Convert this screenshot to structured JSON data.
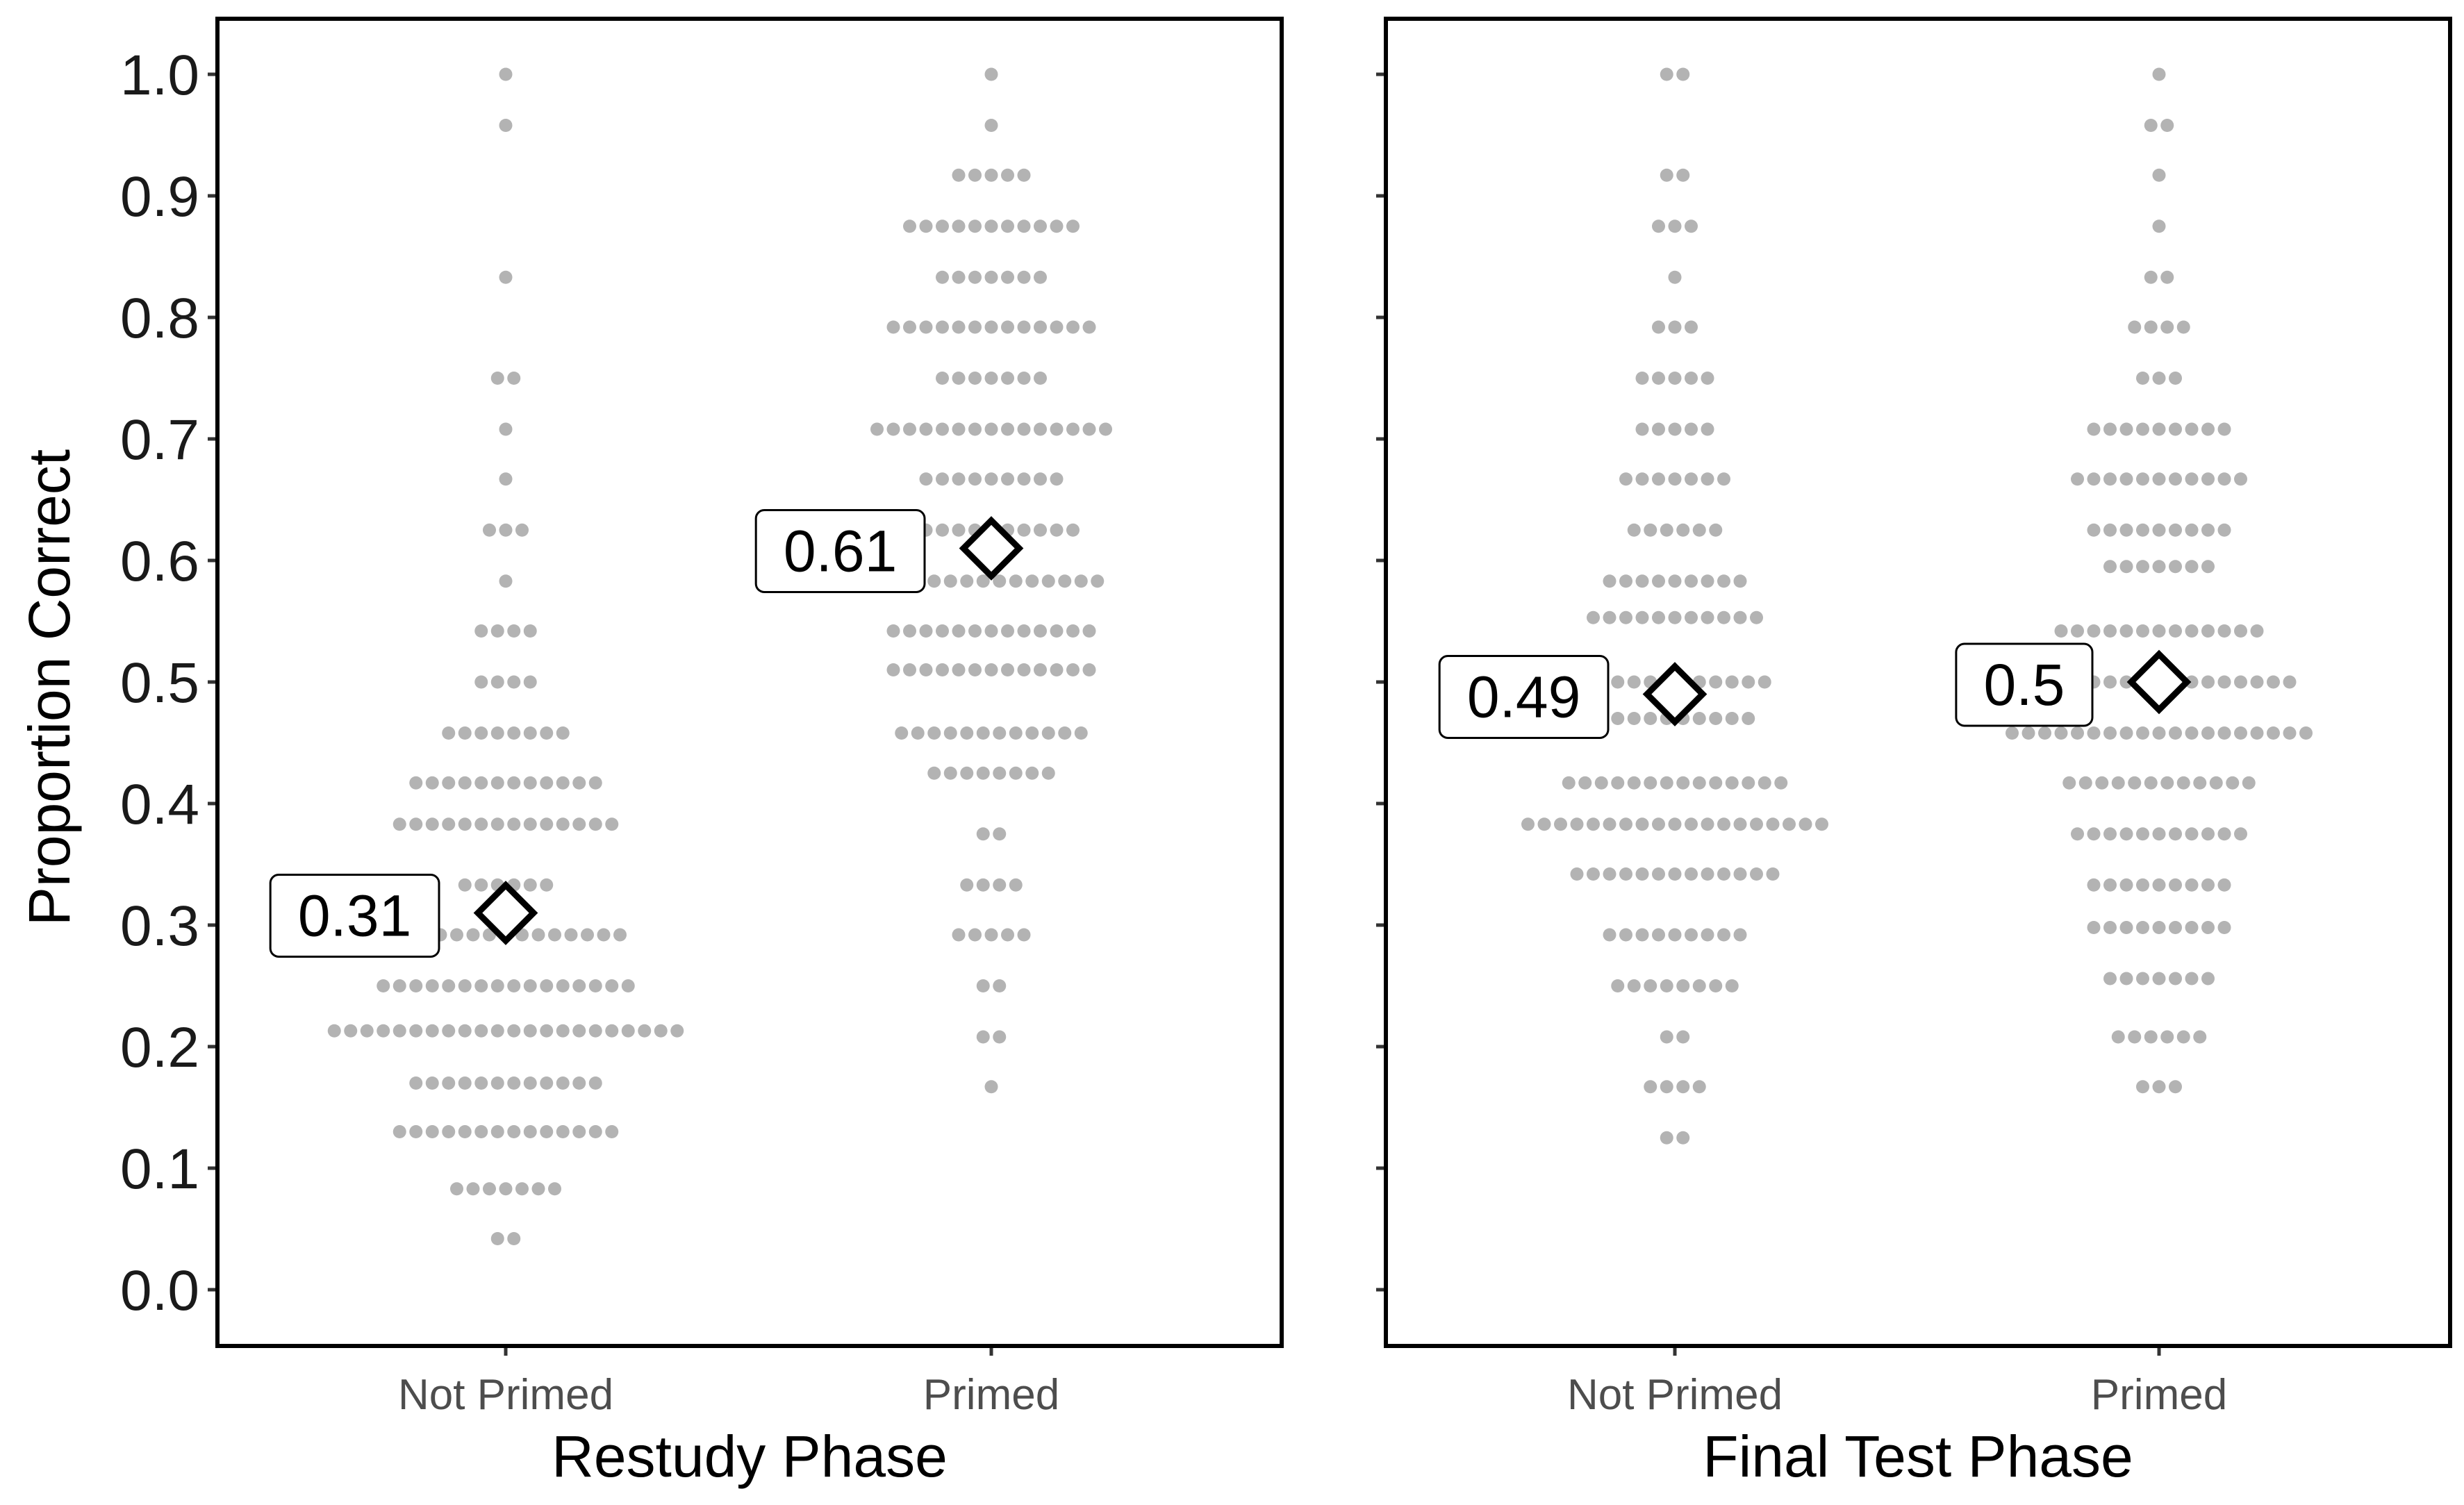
{
  "chart_data": {
    "type": "scatter",
    "ylabel": "Proportion Correct",
    "ylim": [
      0.0,
      1.0
    ],
    "y_ticks": [
      "0.0",
      "0.1",
      "0.2",
      "0.3",
      "0.4",
      "0.5",
      "0.6",
      "0.7",
      "0.8",
      "0.9",
      "1.0"
    ],
    "grid": false,
    "marker_color": "#b3b3b3",
    "mean_marker": "diamond",
    "panels": [
      {
        "xlabel": "Restudy Phase",
        "categories": [
          "Not Primed",
          "Primed"
        ],
        "groups": [
          {
            "category": "Not Primed",
            "mean": 0.31,
            "mean_label": "0.31",
            "distribution": [
              {
                "y": 1.0,
                "count": 1
              },
              {
                "y": 0.958,
                "count": 1
              },
              {
                "y": 0.833,
                "count": 1
              },
              {
                "y": 0.75,
                "count": 2
              },
              {
                "y": 0.708,
                "count": 1
              },
              {
                "y": 0.667,
                "count": 1
              },
              {
                "y": 0.625,
                "count": 3
              },
              {
                "y": 0.583,
                "count": 1
              },
              {
                "y": 0.542,
                "count": 4
              },
              {
                "y": 0.5,
                "count": 4
              },
              {
                "y": 0.458,
                "count": 8
              },
              {
                "y": 0.417,
                "count": 12
              },
              {
                "y": 0.383,
                "count": 14
              },
              {
                "y": 0.333,
                "count": 6
              },
              {
                "y": 0.292,
                "count": 15
              },
              {
                "y": 0.25,
                "count": 16
              },
              {
                "y": 0.213,
                "count": 22
              },
              {
                "y": 0.17,
                "count": 12
              },
              {
                "y": 0.13,
                "count": 14
              },
              {
                "y": 0.083,
                "count": 7
              },
              {
                "y": 0.042,
                "count": 2
              }
            ]
          },
          {
            "category": "Primed",
            "mean": 0.61,
            "mean_label": "0.61",
            "distribution": [
              {
                "y": 1.0,
                "count": 1
              },
              {
                "y": 0.958,
                "count": 1
              },
              {
                "y": 0.917,
                "count": 5
              },
              {
                "y": 0.875,
                "count": 11
              },
              {
                "y": 0.833,
                "count": 7
              },
              {
                "y": 0.792,
                "count": 13
              },
              {
                "y": 0.75,
                "count": 7
              },
              {
                "y": 0.708,
                "count": 15
              },
              {
                "y": 0.667,
                "count": 9
              },
              {
                "y": 0.625,
                "count": 11
              },
              {
                "y": 0.583,
                "count": 14
              },
              {
                "y": 0.542,
                "count": 13
              },
              {
                "y": 0.51,
                "count": 13
              },
              {
                "y": 0.458,
                "count": 12
              },
              {
                "y": 0.425,
                "count": 8
              },
              {
                "y": 0.375,
                "count": 2
              },
              {
                "y": 0.333,
                "count": 4
              },
              {
                "y": 0.292,
                "count": 5
              },
              {
                "y": 0.25,
                "count": 2
              },
              {
                "y": 0.208,
                "count": 2
              },
              {
                "y": 0.167,
                "count": 1
              }
            ]
          }
        ]
      },
      {
        "xlabel": "Final Test Phase",
        "categories": [
          "Not Primed",
          "Primed"
        ],
        "groups": [
          {
            "category": "Not Primed",
            "mean": 0.49,
            "mean_label": "0.49",
            "distribution": [
              {
                "y": 1.0,
                "count": 2
              },
              {
                "y": 0.917,
                "count": 2
              },
              {
                "y": 0.875,
                "count": 3
              },
              {
                "y": 0.833,
                "count": 1
              },
              {
                "y": 0.792,
                "count": 3
              },
              {
                "y": 0.75,
                "count": 5
              },
              {
                "y": 0.708,
                "count": 5
              },
              {
                "y": 0.667,
                "count": 7
              },
              {
                "y": 0.625,
                "count": 6
              },
              {
                "y": 0.583,
                "count": 9
              },
              {
                "y": 0.553,
                "count": 11
              },
              {
                "y": 0.5,
                "count": 12
              },
              {
                "y": 0.47,
                "count": 10
              },
              {
                "y": 0.417,
                "count": 14
              },
              {
                "y": 0.383,
                "count": 19
              },
              {
                "y": 0.342,
                "count": 13
              },
              {
                "y": 0.292,
                "count": 9
              },
              {
                "y": 0.25,
                "count": 8
              },
              {
                "y": 0.208,
                "count": 2
              },
              {
                "y": 0.167,
                "count": 4
              },
              {
                "y": 0.125,
                "count": 2
              }
            ]
          },
          {
            "category": "Primed",
            "mean": 0.5,
            "mean_label": "0.5",
            "distribution": [
              {
                "y": 1.0,
                "count": 1
              },
              {
                "y": 0.958,
                "count": 2
              },
              {
                "y": 0.917,
                "count": 1
              },
              {
                "y": 0.875,
                "count": 1
              },
              {
                "y": 0.833,
                "count": 2
              },
              {
                "y": 0.792,
                "count": 4
              },
              {
                "y": 0.75,
                "count": 3
              },
              {
                "y": 0.708,
                "count": 9
              },
              {
                "y": 0.667,
                "count": 11
              },
              {
                "y": 0.625,
                "count": 9
              },
              {
                "y": 0.595,
                "count": 7
              },
              {
                "y": 0.542,
                "count": 13
              },
              {
                "y": 0.5,
                "count": 17
              },
              {
                "y": 0.458,
                "count": 19
              },
              {
                "y": 0.417,
                "count": 12
              },
              {
                "y": 0.375,
                "count": 11
              },
              {
                "y": 0.333,
                "count": 9
              },
              {
                "y": 0.298,
                "count": 9
              },
              {
                "y": 0.256,
                "count": 7
              },
              {
                "y": 0.208,
                "count": 6
              },
              {
                "y": 0.167,
                "count": 3
              }
            ]
          }
        ]
      }
    ]
  }
}
